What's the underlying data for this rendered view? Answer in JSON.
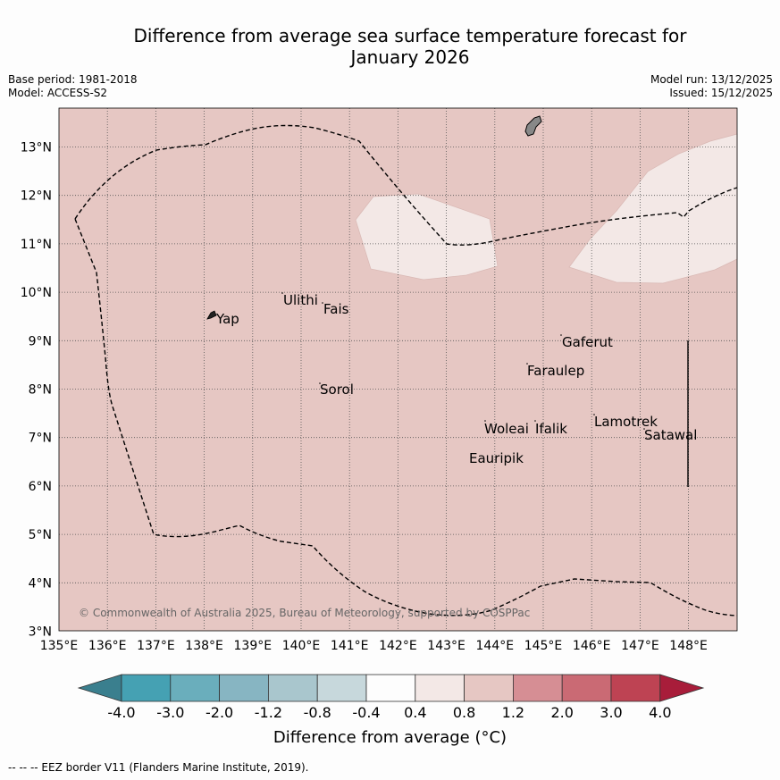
{
  "title_line1": "Difference from average sea surface temperature forecast for",
  "title_line2": "January 2026",
  "meta_left": [
    "Base period: 1981-2018",
    "Model: ACCESS-S2"
  ],
  "meta_right": [
    "Model run: 13/12/2025",
    "Issued: 15/12/2025"
  ],
  "copyright": "© Commonwealth of Australia 2025, Bureau of Meteorology, supported by COSPPac",
  "islands": [
    "Yap",
    "Ulithi",
    "Fais",
    "Gaferut",
    "Faraulep",
    "Sorol",
    "Lamotrek",
    "Satawal",
    "Woleai",
    "Ifalik",
    "Eauripik"
  ],
  "map": {
    "lon_labels": [
      "135°E",
      "136°E",
      "137°E",
      "138°E",
      "139°E",
      "140°E",
      "141°E",
      "142°E",
      "143°E",
      "144°E",
      "145°E",
      "146°E",
      "147°E",
      "148°E"
    ],
    "lat_labels": [
      "13°N",
      "12°N",
      "11°N",
      "10°N",
      "9°N",
      "8°N",
      "7°N",
      "6°N",
      "5°N",
      "4°N",
      "3°N"
    ],
    "background_color": "#e6c7c3",
    "warm_patch_color": "#f3e8e6"
  },
  "colorbar": {
    "ticks": [
      "-4.0",
      "-3.0",
      "-2.0",
      "-1.2",
      "-0.8",
      "-0.4",
      "0.4",
      "0.8",
      "1.2",
      "2.0",
      "3.0",
      "4.0"
    ],
    "colors": [
      "#3a7f8e",
      "#45a1b3",
      "#6aaebc",
      "#87b5c2",
      "#a9c6cd",
      "#c7d8dc",
      "#fdfdfd",
      "#f3e8e6",
      "#e6c7c3",
      "#d68e94",
      "#ca6a74",
      "#be4353",
      "#a81d3a"
    ],
    "label": "Difference from average (°C)"
  },
  "footnote": "--  --  -- EEZ border V11 (Flanders Marine Institute, 2019)."
}
